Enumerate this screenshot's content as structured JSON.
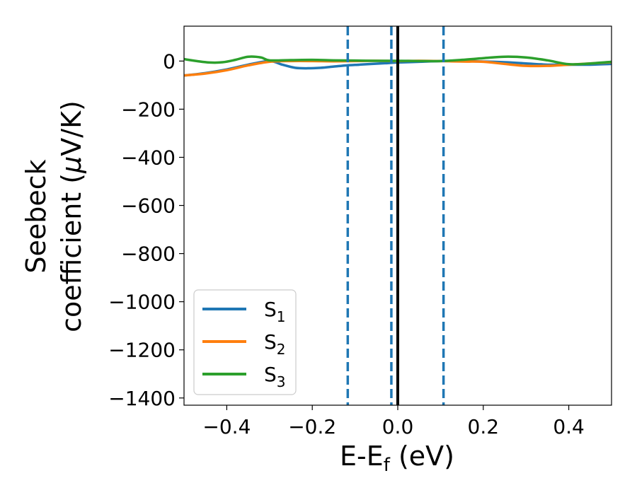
{
  "chart_data": {
    "type": "line",
    "title": "",
    "xlabel": {
      "main": "E-E",
      "sub": "f",
      "unit": " (eV)"
    },
    "ylabel": {
      "line1": "Seebeck",
      "line2": "coefficient  (",
      "mu": "μ",
      "line2_end": "V/K)"
    },
    "xlim": [
      -0.5,
      0.5
    ],
    "ylim": [
      -1430,
      145
    ],
    "x_ticks": [
      -0.4,
      -0.2,
      0.0,
      0.2,
      0.4
    ],
    "x_tick_labels": [
      "−0.4",
      "−0.2",
      "0.0",
      "0.2",
      "0.4"
    ],
    "y_ticks": [
      0,
      -200,
      -400,
      -600,
      -800,
      -1000,
      -1200,
      -1400
    ],
    "y_tick_labels": [
      "0",
      "−200",
      "−400",
      "−600",
      "−800",
      "−1000",
      "−1200",
      "−1400"
    ],
    "grid": false,
    "legend_placement": "lower-left",
    "vertical_lines": [
      {
        "x": -0.117,
        "style": "dashed",
        "color": "#1f77b4"
      },
      {
        "x": -0.015,
        "style": "dashed",
        "color": "#1f77b4"
      },
      {
        "x": 0.0,
        "style": "solid",
        "color": "#000000"
      },
      {
        "x": 0.107,
        "style": "dashed",
        "color": "#1f77b4"
      }
    ],
    "series": [
      {
        "name": "S",
        "sub": "1",
        "color": "#1f77b4",
        "x": [
          -0.5,
          -0.45,
          -0.4,
          -0.35,
          -0.3,
          -0.27,
          -0.24,
          -0.21,
          -0.18,
          -0.15,
          -0.12,
          -0.09,
          -0.06,
          -0.03,
          0.0,
          0.05,
          0.1,
          0.15,
          0.2,
          0.25,
          0.3,
          0.35,
          0.4,
          0.45,
          0.5
        ],
        "y": [
          -60,
          -50,
          -35,
          -15,
          0,
          -15,
          -28,
          -30,
          -28,
          -23,
          -18,
          -15,
          -12,
          -9,
          -6,
          -3,
          0,
          0,
          -2,
          -5,
          -10,
          -15,
          -15,
          -15,
          -12
        ]
      },
      {
        "name": "S",
        "sub": "2",
        "color": "#ff7f0e",
        "x": [
          -0.5,
          -0.45,
          -0.4,
          -0.35,
          -0.3,
          -0.25,
          -0.2,
          -0.15,
          -0.1,
          -0.05,
          0.0,
          0.05,
          0.1,
          0.15,
          0.2,
          0.25,
          0.3,
          0.35,
          0.4,
          0.45,
          0.5
        ],
        "y": [
          -60,
          -52,
          -38,
          -18,
          -3,
          0,
          0,
          -1,
          0,
          1,
          0,
          1,
          0,
          -2,
          -3,
          -12,
          -20,
          -20,
          -15,
          -10,
          -5
        ]
      },
      {
        "name": "S",
        "sub": "3",
        "color": "#2ca02c",
        "x": [
          -0.5,
          -0.47,
          -0.44,
          -0.41,
          -0.38,
          -0.35,
          -0.32,
          -0.3,
          -0.25,
          -0.2,
          -0.15,
          -0.1,
          -0.05,
          0.0,
          0.05,
          0.1,
          0.15,
          0.2,
          0.25,
          0.3,
          0.35,
          0.4,
          0.45,
          0.5
        ],
        "y": [
          8,
          0,
          -6,
          -5,
          5,
          18,
          15,
          3,
          4,
          5,
          3,
          2,
          1,
          1,
          0,
          0,
          5,
          12,
          18,
          15,
          3,
          -13,
          -10,
          -3
        ]
      }
    ]
  }
}
